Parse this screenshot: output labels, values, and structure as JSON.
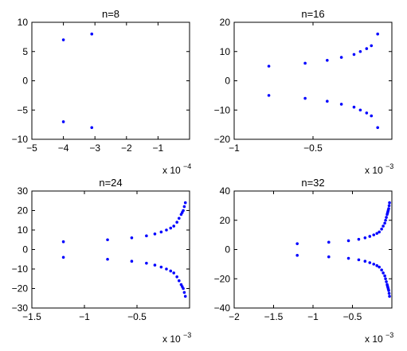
{
  "chart_data": [
    {
      "type": "scatter",
      "title": "n=8",
      "xlim": [
        -5,
        0
      ],
      "ylim": [
        -10,
        10
      ],
      "xticks": [
        -5,
        -4,
        -3,
        -2,
        -1
      ],
      "yticks": [
        -10,
        -5,
        0,
        5,
        10
      ],
      "xtick_labels": [
        "−5",
        "−4",
        "−3",
        "−2",
        "−1"
      ],
      "ytick_labels": [
        "−10",
        "−5",
        "0",
        "5",
        "10"
      ],
      "multiplier_base": "x 10",
      "multiplier_exp": "−4",
      "marker_color": "#0000ff",
      "x": [
        -4.0,
        -4.0,
        -3.1,
        -3.1
      ],
      "y": [
        7.0,
        -7.0,
        8.0,
        -8.0
      ]
    },
    {
      "type": "scatter",
      "title": "n=16",
      "xlim": [
        -1,
        0
      ],
      "ylim": [
        -20,
        20
      ],
      "xticks": [
        -1,
        -0.5
      ],
      "yticks": [
        -20,
        -10,
        0,
        10,
        20
      ],
      "xtick_labels": [
        "−1",
        "−0.5"
      ],
      "ytick_labels": [
        "−20",
        "−10",
        "0",
        "10",
        "20"
      ],
      "multiplier_base": "x 10",
      "multiplier_exp": "−3",
      "marker_color": "#0000ff",
      "x": [
        -0.78,
        -0.55,
        -0.41,
        -0.32,
        -0.24,
        -0.2,
        -0.16,
        -0.13,
        -0.09,
        -0.78,
        -0.55,
        -0.41,
        -0.32,
        -0.24,
        -0.2,
        -0.16,
        -0.13,
        -0.09
      ],
      "y": [
        5.0,
        6.0,
        7.0,
        8.0,
        9.0,
        10.0,
        11.0,
        12.0,
        16.0,
        -5.0,
        -6.0,
        -7.0,
        -8.0,
        -9.0,
        -10.0,
        -11.0,
        -12.0,
        -16.0
      ]
    },
    {
      "type": "scatter",
      "title": "n=24",
      "xlim": [
        -1.5,
        0
      ],
      "ylim": [
        -30,
        30
      ],
      "xticks": [
        -1.5,
        -1,
        -0.5
      ],
      "yticks": [
        -30,
        -20,
        -10,
        0,
        10,
        20,
        30
      ],
      "xtick_labels": [
        "−1.5",
        "−1",
        "−0.5"
      ],
      "ytick_labels": [
        "−30",
        "−20",
        "−10",
        "0",
        "10",
        "20",
        "30"
      ],
      "multiplier_base": "x 10",
      "multiplier_exp": "−3",
      "marker_color": "#0000ff",
      "x": [
        -1.2,
        -0.78,
        -0.55,
        -0.41,
        -0.33,
        -0.27,
        -0.22,
        -0.18,
        -0.15,
        -0.12,
        -0.1,
        -0.08,
        -0.07,
        -0.06,
        -0.05,
        -0.04,
        -1.2,
        -0.78,
        -0.55,
        -0.41,
        -0.33,
        -0.27,
        -0.22,
        -0.18,
        -0.15,
        -0.12,
        -0.1,
        -0.08,
        -0.07,
        -0.06,
        -0.05,
        -0.04
      ],
      "y": [
        4.0,
        5.0,
        6.0,
        7.0,
        8.0,
        9.0,
        10.0,
        11.0,
        12.0,
        14.0,
        16.0,
        18.0,
        19.0,
        20.0,
        22.0,
        24.0,
        -4.0,
        -5.0,
        -6.0,
        -7.0,
        -8.0,
        -9.0,
        -10.0,
        -11.0,
        -12.0,
        -14.0,
        -16.0,
        -18.0,
        -19.0,
        -20.0,
        -22.0,
        -24.0
      ]
    },
    {
      "type": "scatter",
      "title": "n=32",
      "xlim": [
        -2,
        0
      ],
      "ylim": [
        -40,
        40
      ],
      "xticks": [
        -2,
        -1.5,
        -1,
        -0.5
      ],
      "yticks": [
        -40,
        -20,
        0,
        20,
        40
      ],
      "xtick_labels": [
        "−2",
        "−1.5",
        "−1",
        "−0.5"
      ],
      "ytick_labels": [
        "−40",
        "−20",
        "0",
        "20",
        "40"
      ],
      "multiplier_base": "x 10",
      "multiplier_exp": "−3",
      "marker_color": "#0000ff",
      "x": [
        -1.2,
        -0.8,
        -0.55,
        -0.42,
        -0.34,
        -0.28,
        -0.23,
        -0.19,
        -0.16,
        -0.13,
        -0.11,
        -0.09,
        -0.08,
        -0.07,
        -0.06,
        -0.055,
        -0.05,
        -0.045,
        -0.04,
        -0.035,
        -0.03,
        -1.2,
        -0.8,
        -0.55,
        -0.42,
        -0.34,
        -0.28,
        -0.23,
        -0.19,
        -0.16,
        -0.13,
        -0.11,
        -0.09,
        -0.08,
        -0.07,
        -0.06,
        -0.055,
        -0.05,
        -0.045,
        -0.04,
        -0.035,
        -0.03
      ],
      "y": [
        4.0,
        5.0,
        6.0,
        7.0,
        8.0,
        9.0,
        10.0,
        11.0,
        12.0,
        14.0,
        16.0,
        18.0,
        20.0,
        22.0,
        24.0,
        25.0,
        26.0,
        27.0,
        28.0,
        30.0,
        32.0,
        -4.0,
        -5.0,
        -6.0,
        -7.0,
        -8.0,
        -9.0,
        -10.0,
        -11.0,
        -12.0,
        -14.0,
        -16.0,
        -18.0,
        -20.0,
        -22.0,
        -24.0,
        -25.0,
        -26.0,
        -27.0,
        -28.0,
        -30.0,
        -32.0
      ]
    }
  ]
}
